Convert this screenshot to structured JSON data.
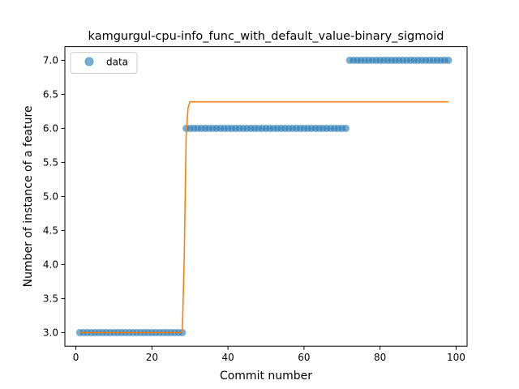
{
  "chart_data": {
    "type": "scatter",
    "title": "kamgurgul-cpu-info_func_with_default_value-binary_sigmoid",
    "xlabel": "Commit number",
    "ylabel": "Number of instance of a feature",
    "xlim": [
      -2.9,
      102.9
    ],
    "ylim": [
      2.8,
      7.2
    ],
    "xticks": [
      0,
      20,
      40,
      60,
      80,
      100
    ],
    "yticks": [
      3.0,
      3.5,
      4.0,
      4.5,
      5.0,
      5.5,
      6.0,
      6.5,
      7.0
    ],
    "xtick_labels": [
      "0",
      "20",
      "40",
      "60",
      "80",
      "100"
    ],
    "ytick_labels": [
      "3.0",
      "3.5",
      "4.0",
      "4.5",
      "5.0",
      "5.5",
      "6.0",
      "6.5",
      "7.0"
    ],
    "grid": false,
    "legend": {
      "position": "top-left",
      "entries": [
        "data"
      ]
    },
    "series": [
      {
        "name": "data",
        "kind": "scatter",
        "color": "#1f77b4",
        "segments": [
          {
            "x_start": 1,
            "x_end": 28,
            "y": 3.0
          },
          {
            "x_start": 29,
            "x_end": 71,
            "y": 6.0
          },
          {
            "x_start": 72,
            "x_end": 98,
            "y": 7.0
          }
        ]
      },
      {
        "kind": "line",
        "color": "#ff7f0e",
        "x": [
          1,
          27.5,
          28,
          28.5,
          29,
          29.5,
          30,
          31,
          40,
          60,
          80,
          98
        ],
        "y": [
          3.0,
          3.0,
          3.02,
          4.1,
          5.9,
          6.3,
          6.39,
          6.39,
          6.39,
          6.39,
          6.39,
          6.39
        ]
      }
    ]
  }
}
